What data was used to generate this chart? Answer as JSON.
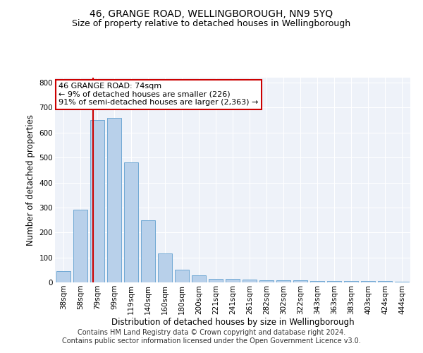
{
  "title1": "46, GRANGE ROAD, WELLINGBOROUGH, NN9 5YQ",
  "title2": "Size of property relative to detached houses in Wellingborough",
  "xlabel": "Distribution of detached houses by size in Wellingborough",
  "ylabel": "Number of detached properties",
  "categories": [
    "38sqm",
    "58sqm",
    "79sqm",
    "99sqm",
    "119sqm",
    "140sqm",
    "160sqm",
    "180sqm",
    "200sqm",
    "221sqm",
    "241sqm",
    "261sqm",
    "282sqm",
    "302sqm",
    "322sqm",
    "343sqm",
    "363sqm",
    "383sqm",
    "403sqm",
    "424sqm",
    "444sqm"
  ],
  "bar_values": [
    45,
    290,
    650,
    660,
    480,
    250,
    115,
    52,
    27,
    15,
    15,
    10,
    8,
    8,
    8,
    5,
    5,
    5,
    5,
    5,
    2
  ],
  "bar_color": "#b8d0ea",
  "bar_edge_color": "#6fa8d4",
  "red_line_x": 1.73,
  "annotation_text": "46 GRANGE ROAD: 74sqm\n← 9% of detached houses are smaller (226)\n91% of semi-detached houses are larger (2,363) →",
  "annotation_box_color": "#ffffff",
  "annotation_box_edge_color": "#cc0000",
  "ylim": [
    0,
    820
  ],
  "yticks": [
    0,
    100,
    200,
    300,
    400,
    500,
    600,
    700,
    800
  ],
  "background_color": "#eef2f9",
  "footer_line1": "Contains HM Land Registry data © Crown copyright and database right 2024.",
  "footer_line2": "Contains public sector information licensed under the Open Government Licence v3.0.",
  "title1_fontsize": 10,
  "title2_fontsize": 9,
  "xlabel_fontsize": 8.5,
  "ylabel_fontsize": 8.5,
  "tick_fontsize": 7.5,
  "annotation_fontsize": 8,
  "footer_fontsize": 7
}
